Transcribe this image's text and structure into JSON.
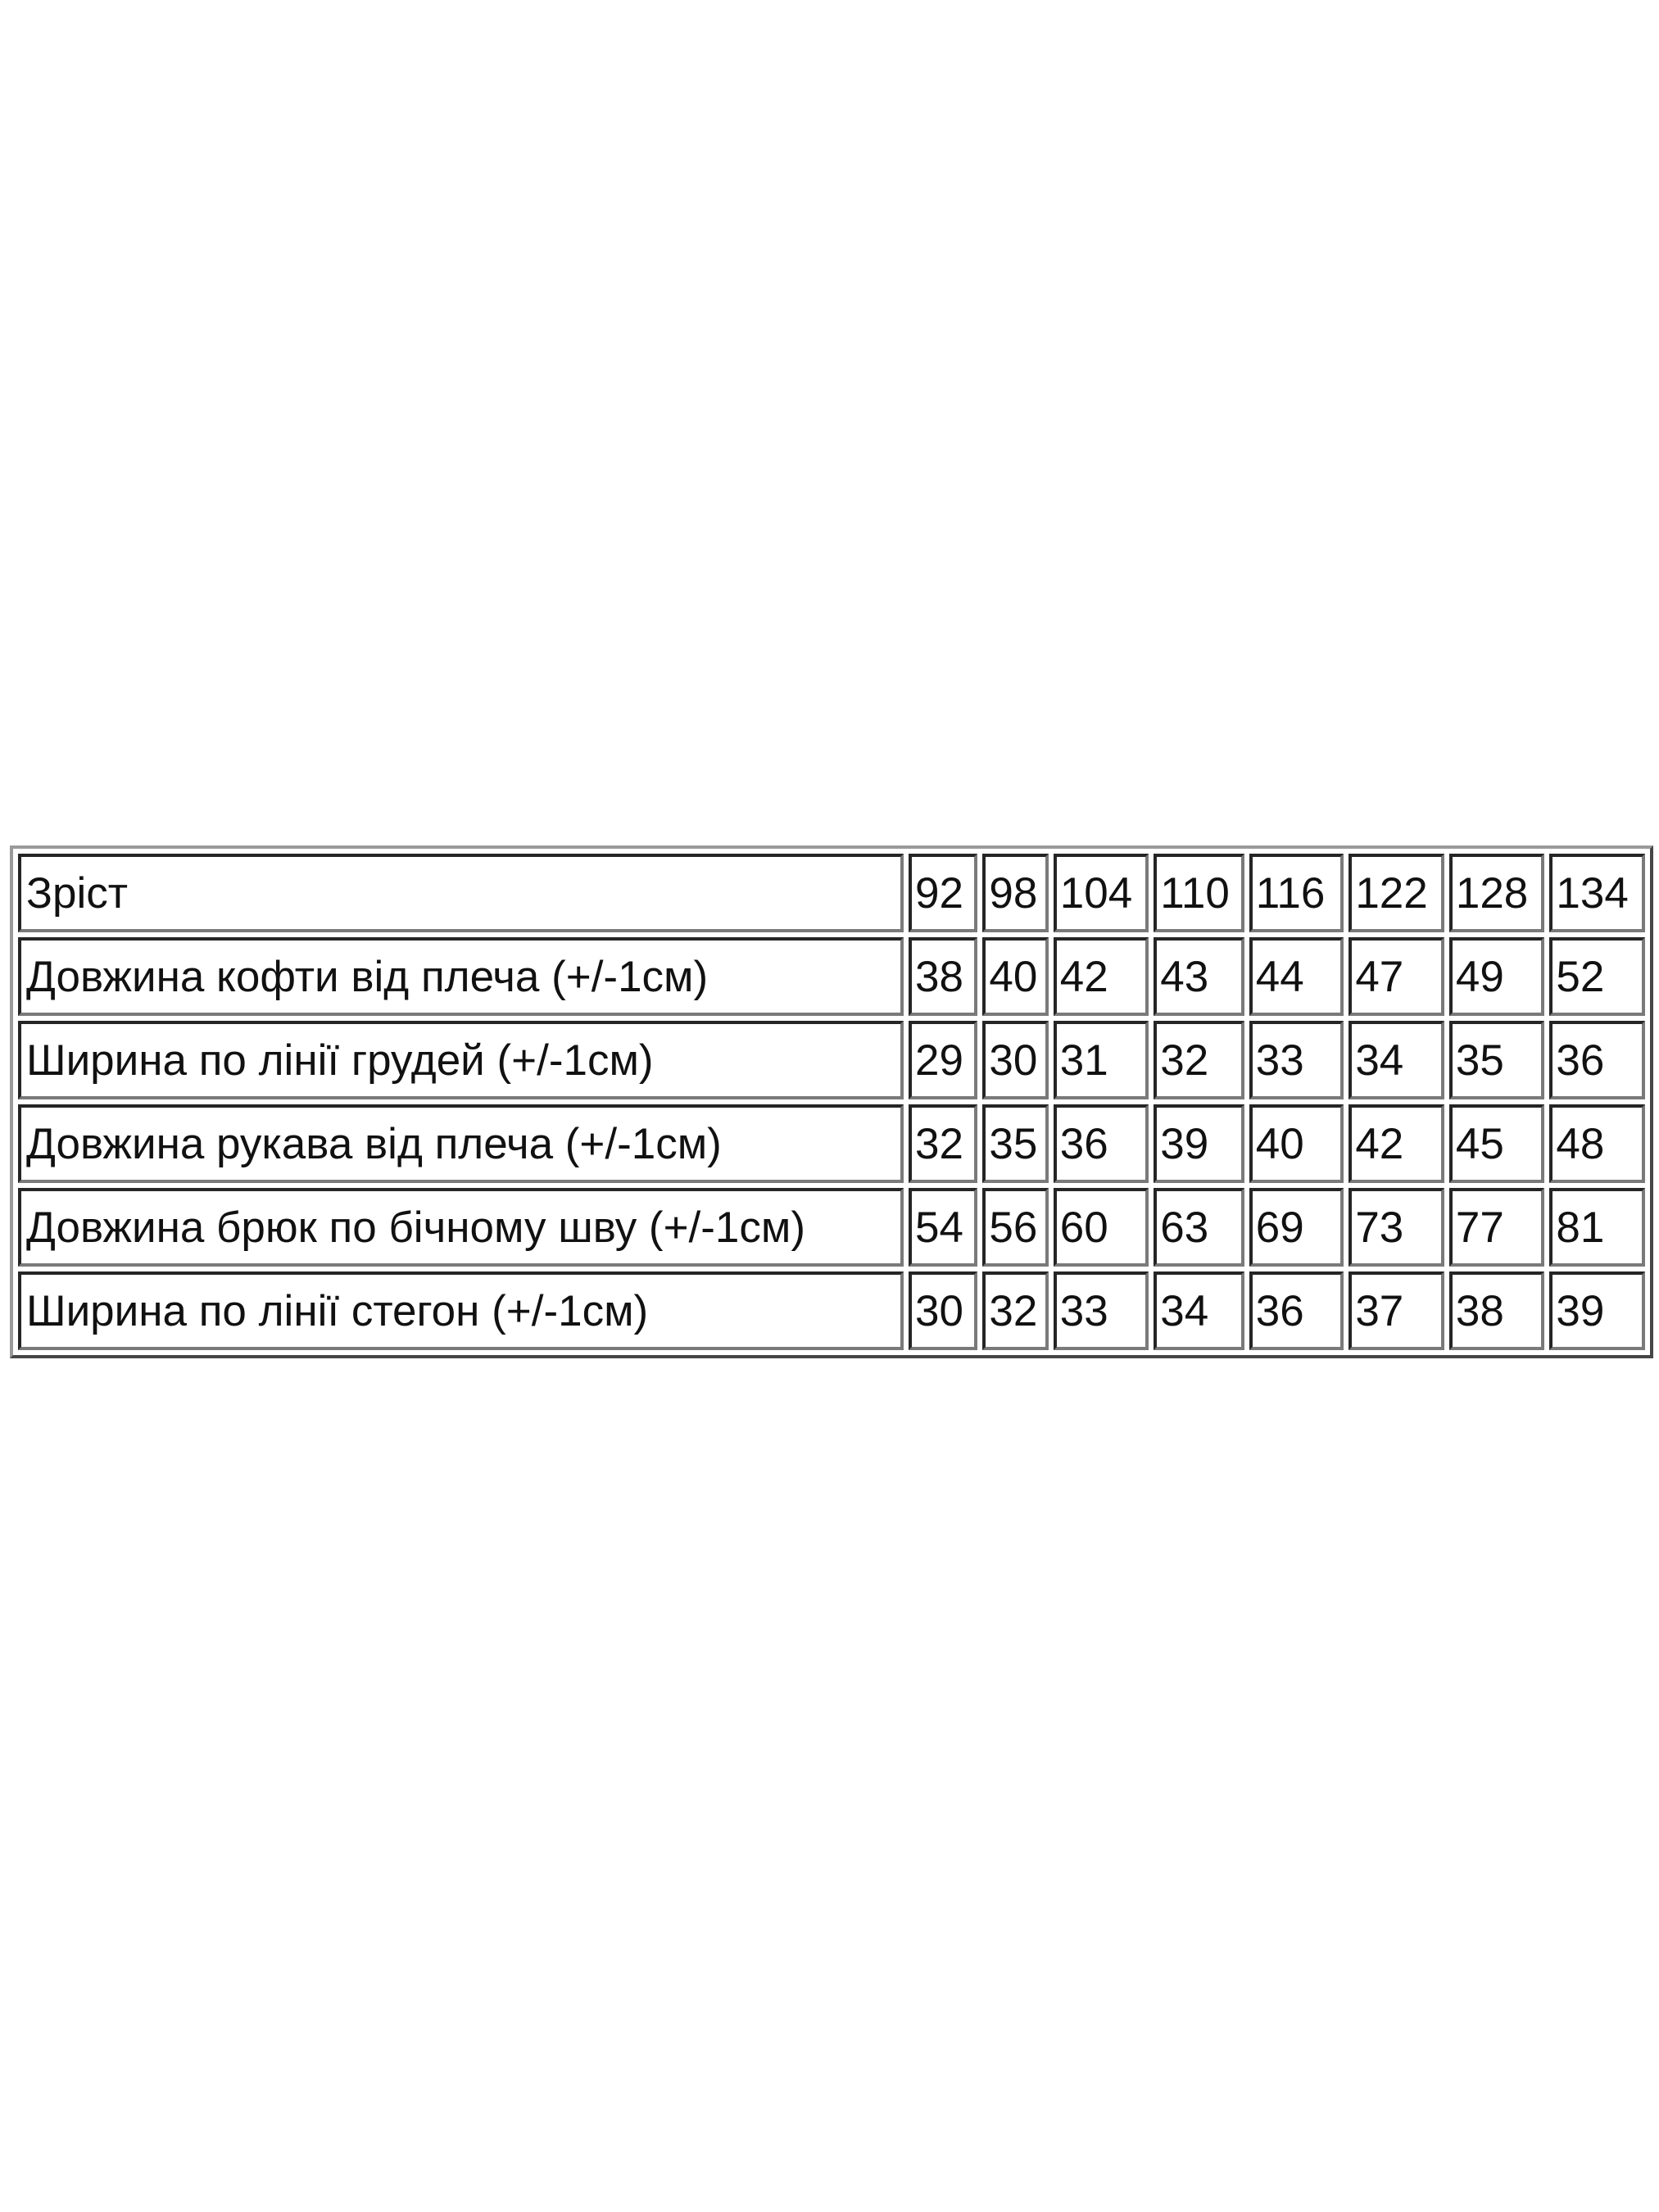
{
  "table": {
    "header": {
      "label": "Зріст",
      "sizes": [
        "92",
        "98",
        "104",
        "110",
        "116",
        "122",
        "128",
        "134"
      ]
    },
    "rows": [
      {
        "label": "Довжина кофти від плеча (+/-1см)",
        "values": [
          "38",
          "40",
          "42",
          "43",
          "44",
          "47",
          "49",
          "52"
        ]
      },
      {
        "label": "Ширина по лінії грудей (+/-1см)",
        "values": [
          "29",
          "30",
          "31",
          "32",
          "33",
          "34",
          "35",
          "36"
        ]
      },
      {
        "label": "Довжина рукава від плеча (+/-1см)",
        "values": [
          "32",
          "35",
          "36",
          "39",
          "40",
          "42",
          "45",
          "48"
        ]
      },
      {
        "label": "Довжина брюк по бічному шву (+/-1см)",
        "values": [
          "54",
          "56",
          "60",
          "63",
          "69",
          "73",
          "77",
          "81"
        ]
      },
      {
        "label": "Ширина по лінії стегон (+/-1см)",
        "values": [
          "30",
          "32",
          "33",
          "34",
          "36",
          "37",
          "38",
          "39"
        ]
      }
    ]
  }
}
